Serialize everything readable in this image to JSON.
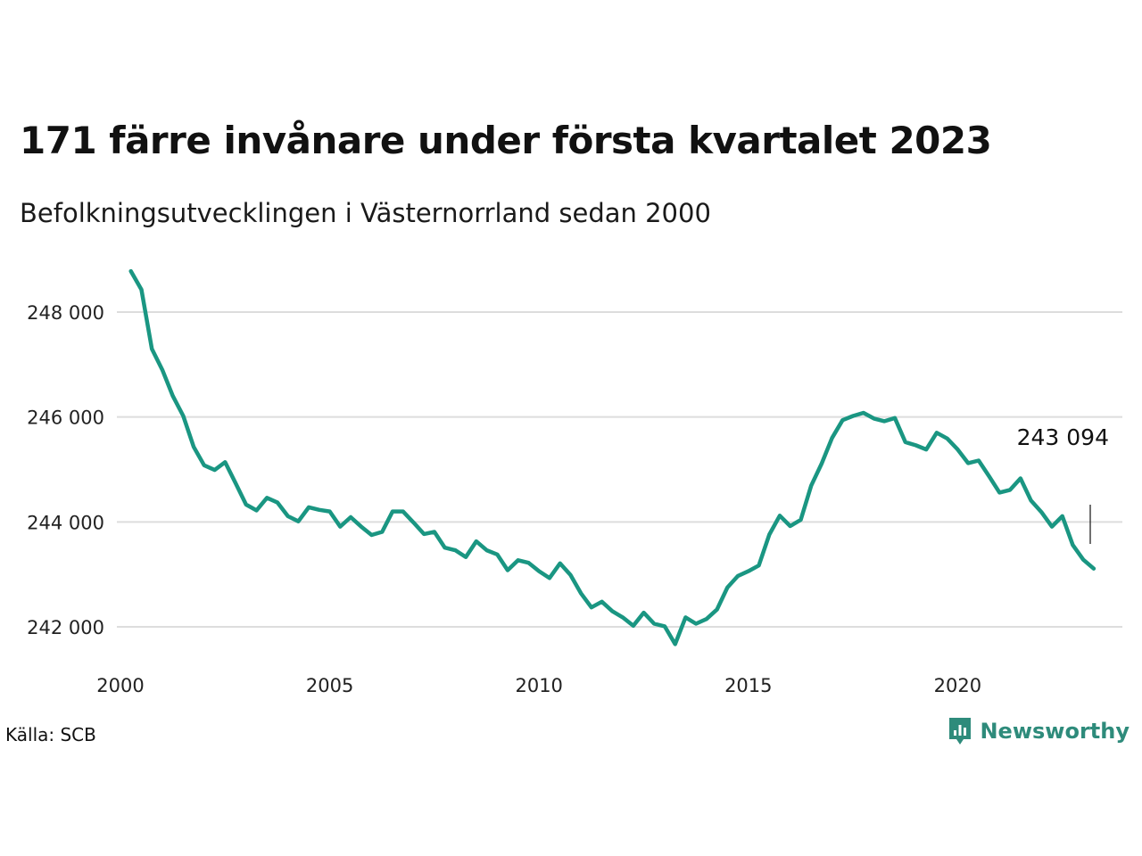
{
  "title": "171 färre invånare under första kvartalet 2023",
  "subtitle": "Befolkningsutvecklingen i Västernorrland sedan 2000",
  "source": "Källa: SCB",
  "brand": {
    "name": "Newsworthy",
    "icon": "newsworthy-logo-icon",
    "color": "#2e8b7b"
  },
  "line_color": "#1a9682",
  "chart_data": {
    "type": "line",
    "x_unit": "year",
    "xlim": [
      2000,
      2024
    ],
    "ylim": [
      241300,
      249200
    ],
    "x_ticks": [
      {
        "value": 2000,
        "label": "2000"
      },
      {
        "value": 2005,
        "label": "2005"
      },
      {
        "value": 2010,
        "label": "2010"
      },
      {
        "value": 2015,
        "label": "2015"
      },
      {
        "value": 2020,
        "label": "2020"
      }
    ],
    "y_ticks": [
      {
        "value": 242000,
        "label": "242 000"
      },
      {
        "value": 244000,
        "label": "244 000"
      },
      {
        "value": 246000,
        "label": "246 000"
      },
      {
        "value": 248000,
        "label": "248 000"
      }
    ],
    "grid": "horizontal",
    "end_label": "243 094",
    "series": [
      {
        "x": [
          2000.25,
          2000.5,
          2000.75,
          2001,
          2001.25,
          2001.5,
          2001.75,
          2002,
          2002.25,
          2002.5,
          2002.75,
          2003,
          2003.25,
          2003.5,
          2003.75,
          2004,
          2004.25,
          2004.5,
          2004.75,
          2005,
          2005.25,
          2005.5,
          2005.75,
          2006,
          2006.25,
          2006.5,
          2006.75,
          2007,
          2007.25,
          2007.5,
          2007.75,
          2008,
          2008.25,
          2008.5,
          2008.75,
          2009,
          2009.25,
          2009.5,
          2009.75,
          2010,
          2010.25,
          2010.5,
          2010.75,
          2011,
          2011.25,
          2011.5,
          2011.75,
          2012,
          2012.25,
          2012.5,
          2012.75,
          2013,
          2013.25,
          2013.5,
          2013.75,
          2014,
          2014.25,
          2014.5,
          2014.75,
          2015,
          2015.25,
          2015.5,
          2015.75,
          2016,
          2016.25,
          2016.5,
          2016.75,
          2017,
          2017.25,
          2017.5,
          2017.75,
          2018,
          2018.25,
          2018.5,
          2018.75,
          2019,
          2019.25,
          2019.5,
          2019.75,
          2020,
          2020.25,
          2020.5,
          2020.75,
          2021,
          2021.25,
          2021.5,
          2021.75,
          2022,
          2022.25,
          2022.5,
          2022.75,
          2023,
          2023.25
        ],
        "values": [
          248780,
          248430,
          247300,
          246900,
          246400,
          246020,
          245430,
          245080,
          244990,
          245140,
          244740,
          244330,
          244220,
          244460,
          244370,
          244110,
          244010,
          244280,
          244230,
          244200,
          243910,
          244090,
          243910,
          243750,
          243810,
          244200,
          244200,
          243990,
          243770,
          243810,
          243510,
          243460,
          243330,
          243630,
          243460,
          243380,
          243080,
          243270,
          243220,
          243060,
          242930,
          243210,
          242990,
          242640,
          242370,
          242480,
          242300,
          242180,
          242020,
          242270,
          242060,
          242010,
          241670,
          242180,
          242060,
          242150,
          242330,
          242750,
          242970,
          243060,
          243170,
          243760,
          244120,
          243920,
          244040,
          244690,
          245110,
          245600,
          245940,
          246020,
          246080,
          245970,
          245920,
          245980,
          245520,
          245460,
          245380,
          245700,
          245590,
          245380,
          245120,
          245170,
          244870,
          244560,
          244610,
          244830,
          244410,
          244190,
          243910,
          244110,
          243560,
          243280,
          243110
        ]
      }
    ]
  }
}
